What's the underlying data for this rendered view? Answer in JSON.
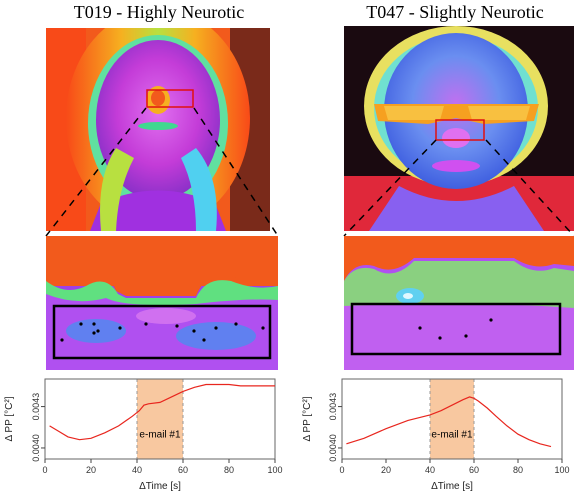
{
  "panels": [
    {
      "title": "T019 - Highly Neurotic",
      "annotation": "e-mail #1",
      "colors": {
        "background": "#7a2a1a",
        "hair": "#f25a1c",
        "skin": "#c43cd8",
        "skin_light": "#e070f0",
        "neck": "#a030e0"
      }
    },
    {
      "title": "T047 - Slightly Neurotic",
      "annotation": "e-mail #1",
      "colors": {
        "background": "#1a0a10",
        "hair": "#d8e45a",
        "skin": "#6a8ef0",
        "skin_light": "#c070f0",
        "neck": "#8860f0"
      }
    }
  ],
  "chart_data": [
    {
      "type": "line",
      "xlabel": "ΔTime [s]",
      "ylabel": "Δ PP  [°C²]",
      "xlim": [
        0,
        100
      ],
      "xticks": [
        "0",
        "20",
        "40",
        "60",
        "80",
        "100"
      ],
      "ylim": [
        0.00392,
        0.0045
      ],
      "yticks": [
        "0.0040",
        "0.0043"
      ],
      "shaded_interval": [
        40,
        60
      ],
      "shade_color": "#f8c8a0",
      "line_color": "#e8261e",
      "series": [
        {
          "x": [
            2,
            6,
            10,
            15,
            20,
            26,
            32,
            38,
            41,
            43,
            45,
            50,
            55,
            60,
            65,
            70,
            75,
            80,
            85,
            90,
            95,
            100
          ],
          "values": [
            0.00416,
            0.00412,
            0.00408,
            0.00406,
            0.00407,
            0.00411,
            0.00416,
            0.00423,
            0.00427,
            0.00431,
            0.00432,
            0.00433,
            0.00437,
            0.00441,
            0.00444,
            0.00446,
            0.00446,
            0.00446,
            0.00445,
            0.00445,
            0.00445,
            0.00445
          ]
        }
      ]
    },
    {
      "type": "line",
      "xlabel": "ΔTime [s]",
      "ylabel": "Δ PP  [°C²]",
      "xlim": [
        0,
        100
      ],
      "xticks": [
        "0",
        "20",
        "40",
        "60",
        "80",
        "100"
      ],
      "ylim": [
        0.00392,
        0.0045
      ],
      "yticks": [
        "0.0040",
        "0.0043"
      ],
      "shaded_interval": [
        40,
        60
      ],
      "shade_color": "#f8c8a0",
      "line_color": "#e8261e",
      "series": [
        {
          "x": [
            2,
            10,
            20,
            30,
            40,
            45,
            50,
            55,
            58,
            60,
            62,
            66,
            70,
            75,
            80,
            85,
            90,
            95
          ],
          "values": [
            0.00403,
            0.00407,
            0.00414,
            0.0042,
            0.00424,
            0.00427,
            0.00431,
            0.00435,
            0.00437,
            0.00436,
            0.00434,
            0.00429,
            0.00423,
            0.00416,
            0.0041,
            0.00406,
            0.00403,
            0.00401
          ]
        }
      ]
    }
  ]
}
